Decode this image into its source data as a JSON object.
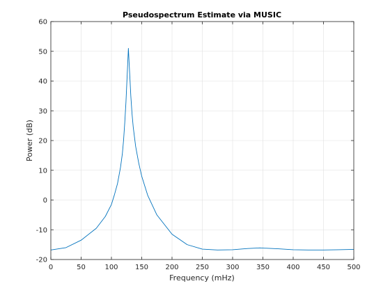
{
  "chart_data": {
    "type": "line",
    "title": "Pseudospectrum Estimate via MUSIC",
    "xlabel": "Frequency (mHz)",
    "ylabel": "Power (dB)",
    "xlim": [
      0,
      500
    ],
    "ylim": [
      -20,
      60
    ],
    "xticks": [
      0,
      50,
      100,
      150,
      200,
      250,
      300,
      350,
      400,
      450,
      500
    ],
    "yticks": [
      -20,
      -10,
      0,
      10,
      20,
      30,
      40,
      50,
      60
    ],
    "grid": true,
    "legend": "none",
    "line_color": "#0072BD",
    "series": [
      {
        "x": [
          0,
          25,
          50,
          75,
          90,
          100,
          105,
          110,
          115,
          118,
          120,
          122,
          124,
          126,
          128,
          130,
          132,
          134,
          136,
          140,
          145,
          150,
          160,
          175,
          200,
          225,
          250,
          275,
          300,
          325,
          345,
          375,
          400,
          425,
          450,
          475,
          500
        ],
        "y": [
          -16.8,
          -16.0,
          -13.5,
          -9.5,
          -5.5,
          -1.5,
          1.8,
          5.5,
          11.0,
          15.5,
          20.0,
          26.0,
          33.0,
          42.0,
          51.0,
          43.0,
          35.0,
          29.0,
          24.5,
          18.0,
          12.5,
          8.0,
          1.5,
          -5.0,
          -11.5,
          -15.0,
          -16.5,
          -16.8,
          -16.7,
          -16.3,
          -16.1,
          -16.4,
          -16.7,
          -16.8,
          -16.8,
          -16.7,
          -16.6
        ]
      }
    ]
  }
}
